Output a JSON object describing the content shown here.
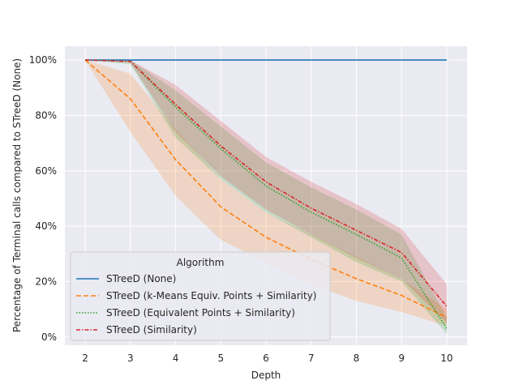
{
  "chart_data": {
    "type": "line",
    "xlabel": "Depth",
    "ylabel": "Percentage of Terminal calls compared to STreeD (None)",
    "x": [
      2,
      3,
      4,
      5,
      6,
      7,
      8,
      9,
      10
    ],
    "xlim": [
      1.55,
      10.45
    ],
    "ylim": [
      -3,
      105
    ],
    "yticks": [
      0,
      20,
      40,
      60,
      80,
      100
    ],
    "ytick_labels": [
      "0%",
      "20%",
      "40%",
      "60%",
      "80%",
      "100%"
    ],
    "xtick_labels": [
      "2",
      "3",
      "4",
      "5",
      "6",
      "7",
      "8",
      "9",
      "10"
    ],
    "grid": true,
    "background": "#eaeaf2",
    "legend": {
      "title": "Algorithm",
      "placement": "lower-left"
    },
    "series": [
      {
        "name": "STreeD (None)",
        "color": "#1f77b4",
        "dash": "solid",
        "values": [
          100,
          100,
          100,
          100,
          100,
          100,
          100,
          100,
          100
        ],
        "lower": [
          100,
          100,
          100,
          100,
          100,
          100,
          100,
          100,
          100
        ],
        "upper": [
          100,
          100,
          100,
          100,
          100,
          100,
          100,
          100,
          100
        ]
      },
      {
        "name": "STreeD (k-Means Equiv. Points + Similarity)",
        "color": "#ff7f0e",
        "dash": "dashed",
        "values": [
          100,
          86,
          64,
          47,
          36,
          28,
          21,
          15,
          7
        ],
        "lower": [
          100,
          74,
          51,
          35,
          27,
          19,
          13,
          9,
          4
        ],
        "upper": [
          100,
          95,
          75,
          57,
          45,
          37,
          29,
          21,
          10
        ]
      },
      {
        "name": "STreeD (Equivalent Points + Similarity)",
        "color": "#2ca02c",
        "dash": "dotted",
        "values": [
          100,
          99.5,
          83,
          68,
          54.5,
          45,
          37,
          28.5,
          3
        ],
        "lower": [
          100,
          98.5,
          72,
          57,
          45,
          36,
          27,
          20,
          1
        ],
        "upper": [
          100,
          100,
          89,
          76,
          63,
          54,
          46,
          37,
          7
        ]
      },
      {
        "name": "STreeD (Similarity)",
        "color": "#d62728",
        "dash": "dashdot",
        "values": [
          100,
          99.5,
          84,
          69,
          56,
          46.5,
          38.5,
          30.5,
          11
        ],
        "lower": [
          100,
          99,
          74,
          58,
          46,
          37,
          28.5,
          21,
          5
        ],
        "upper": [
          100,
          100,
          91,
          78,
          65,
          56,
          48,
          39,
          19
        ]
      }
    ]
  }
}
